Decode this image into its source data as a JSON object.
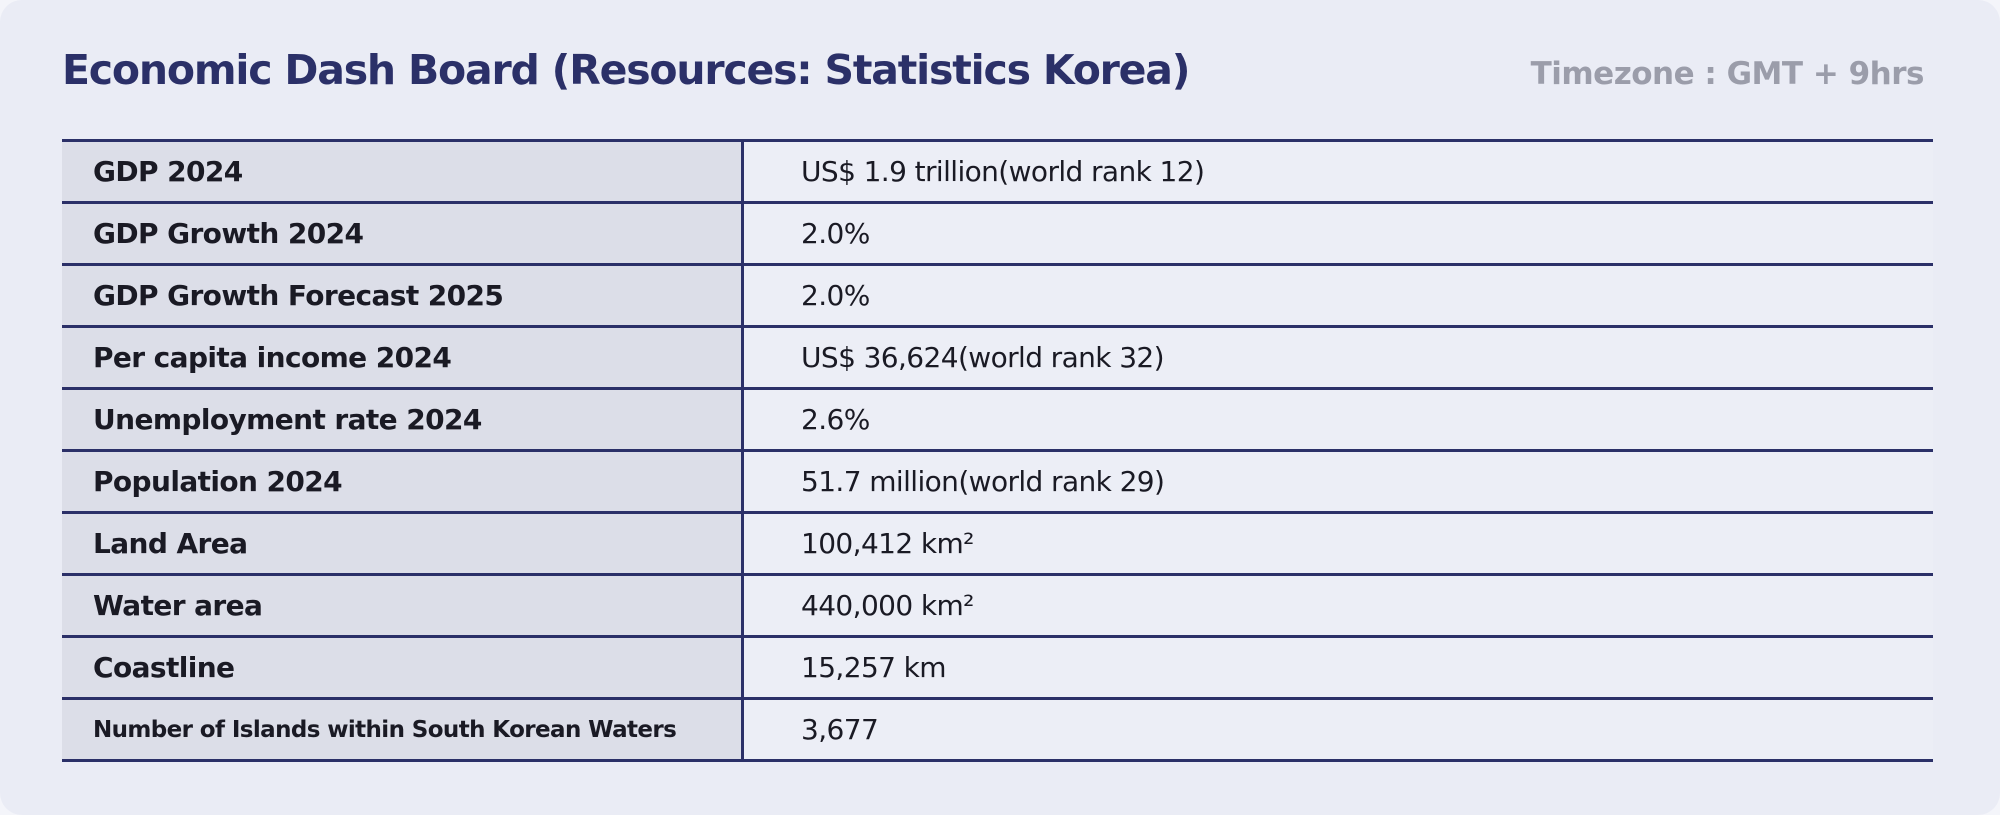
{
  "header": {
    "title": "Economic Dash Board (Resources: Statistics Korea)",
    "timezone": "Timezone : GMT + 9hrs"
  },
  "table": {
    "rows": [
      {
        "label": "GDP 2024",
        "value": "US$ 1.9 trillion(world rank 12)"
      },
      {
        "label": "GDP Growth 2024",
        "value": "2.0%"
      },
      {
        "label": "GDP Growth Forecast 2025",
        "value": "2.0%"
      },
      {
        "label": "Per capita income 2024",
        "value": "US$ 36,624(world rank 32)"
      },
      {
        "label": "Unemployment rate 2024",
        "value": "2.6%"
      },
      {
        "label": "Population 2024",
        "value": "51.7 million(world rank 29)"
      },
      {
        "label": "Land Area",
        "value": "100,412 km²"
      },
      {
        "label": "Water area",
        "value": "440,000 km²"
      },
      {
        "label": "Coastline",
        "value": "15,257 km"
      },
      {
        "label": "Number of Islands within South Korean Waters",
        "value": "3,677"
      }
    ]
  }
}
